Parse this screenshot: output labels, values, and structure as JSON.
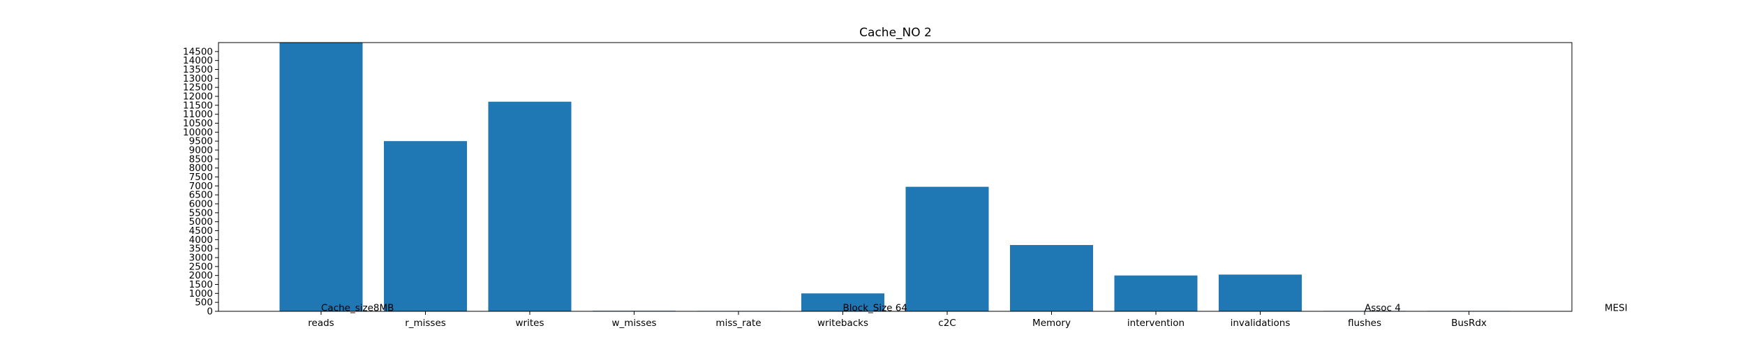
{
  "chart_data": {
    "type": "bar",
    "title": "Cache_NO 2",
    "xlabel": "",
    "ylabel": "",
    "categories": [
      "reads",
      "r_misses",
      "writes",
      "w_misses",
      "miss_rate",
      "writebacks",
      "c2C",
      "Memory",
      "intervention",
      "invalidations",
      "flushes",
      "BusRdx"
    ],
    "values": [
      15000,
      9500,
      11700,
      30,
      0,
      1000,
      6950,
      3700,
      2000,
      2050,
      20,
      20
    ],
    "ylim": [
      0,
      15000
    ],
    "yticks": [
      0,
      500,
      1000,
      1500,
      2000,
      2500,
      3000,
      3500,
      4000,
      4500,
      5000,
      5500,
      6000,
      6500,
      7000,
      7500,
      8000,
      8500,
      9000,
      9500,
      10000,
      10500,
      11000,
      11500,
      12000,
      12500,
      13000,
      13500,
      14000,
      14500
    ],
    "bar_color": "#1f77b4",
    "grid": false,
    "annotations": [
      {
        "text": "Cache_size8MB",
        "x_category": 0
      },
      {
        "text": "Block_Size 64",
        "x_category": 5
      },
      {
        "text": "Assoc 4",
        "x_category": 10
      },
      {
        "text": "MESI",
        "x_category": 12.3
      }
    ]
  }
}
